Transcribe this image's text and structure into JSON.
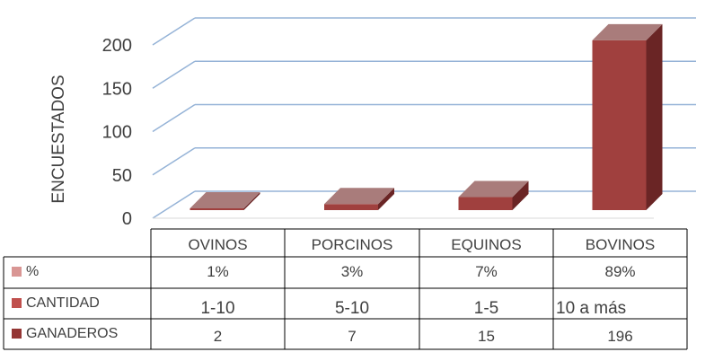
{
  "chart_data": {
    "type": "bar",
    "ylabel": "ENCUESTADOS",
    "ylim": [
      0,
      200
    ],
    "yticks": [
      0,
      50,
      100,
      150,
      200
    ],
    "categories": [
      "OVINOS",
      "PORCINOS",
      "EQUINOS",
      "BOVINOS"
    ],
    "plotted_series": "GANADEROS",
    "series": [
      {
        "name": "%",
        "values": [
          "1%",
          "3%",
          "7%",
          "89%"
        ],
        "color": "#D99694"
      },
      {
        "name": "CANTIDAD",
        "values": [
          "1-10",
          "5-10",
          "1-5",
          "10 a más"
        ],
        "color": "#C0504D"
      },
      {
        "name": "GANADEROS",
        "values": [
          2,
          7,
          15,
          196
        ],
        "color": "#943634"
      }
    ],
    "grid": true,
    "legend": "data-table"
  },
  "colors": {
    "bar_front": "#A0403E",
    "bar_top": "#A97C7B",
    "bar_side": "#6A2525",
    "gridline": "#95B3D7",
    "table_border": "#000000"
  }
}
